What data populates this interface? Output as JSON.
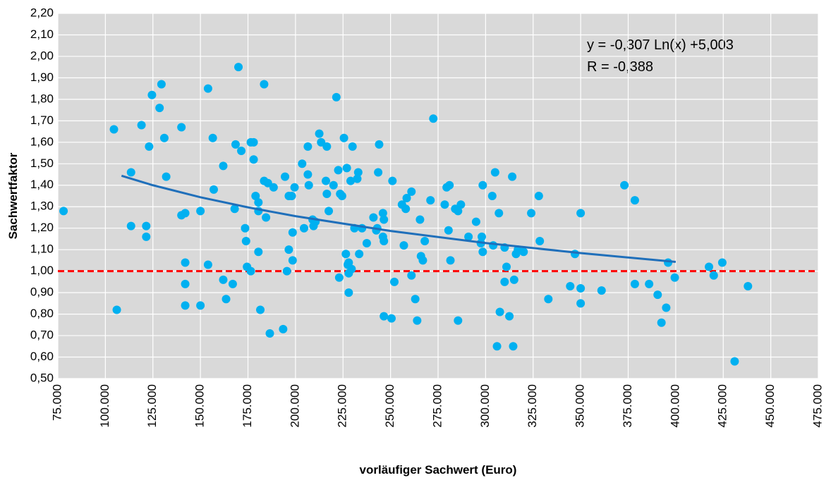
{
  "chart_data": {
    "type": "scatter",
    "x_label": "vorläufiger Sachwert (Euro)",
    "y_label": "Sachwertfaktor",
    "annotations": [
      "y = -0,307 Ln(x) +5,003",
      "R = -0,388"
    ],
    "xlim": [
      75000,
      475000
    ],
    "ylim": [
      0.5,
      2.2
    ],
    "xticks": [
      {
        "value": 75000,
        "label": "75.000"
      },
      {
        "value": 100000,
        "label": "100.000"
      },
      {
        "value": 125000,
        "label": "125.000"
      },
      {
        "value": 150000,
        "label": "150.000"
      },
      {
        "value": 175000,
        "label": "175.000"
      },
      {
        "value": 200000,
        "label": "200.000"
      },
      {
        "value": 225000,
        "label": "225.000"
      },
      {
        "value": 250000,
        "label": "250.000"
      },
      {
        "value": 275000,
        "label": "275.000"
      },
      {
        "value": 300000,
        "label": "300.000"
      },
      {
        "value": 325000,
        "label": "325.000"
      },
      {
        "value": 350000,
        "label": "350.000"
      },
      {
        "value": 375000,
        "label": "375.000"
      },
      {
        "value": 400000,
        "label": "400.000"
      },
      {
        "value": 425000,
        "label": "425.000"
      },
      {
        "value": 450000,
        "label": "450.000"
      },
      {
        "value": 475000,
        "label": "475.000"
      }
    ],
    "yticks": [
      {
        "value": 0.5,
        "label": "0,50"
      },
      {
        "value": 0.6,
        "label": "0,60"
      },
      {
        "value": 0.7,
        "label": "0,70"
      },
      {
        "value": 0.8,
        "label": "0,80"
      },
      {
        "value": 0.9,
        "label": "0,90"
      },
      {
        "value": 1.0,
        "label": "1,00"
      },
      {
        "value": 1.1,
        "label": "1,10"
      },
      {
        "value": 1.2,
        "label": "1,20"
      },
      {
        "value": 1.3,
        "label": "1,30"
      },
      {
        "value": 1.4,
        "label": "1,40"
      },
      {
        "value": 1.5,
        "label": "1,50"
      },
      {
        "value": 1.6,
        "label": "1,60"
      },
      {
        "value": 1.7,
        "label": "1,70"
      },
      {
        "value": 1.8,
        "label": "1,80"
      },
      {
        "value": 1.9,
        "label": "1,90"
      },
      {
        "value": 2.0,
        "label": "2,00"
      },
      {
        "value": 2.1,
        "label": "2,10"
      },
      {
        "value": 2.2,
        "label": "2,20"
      }
    ],
    "grid": true,
    "reference_line": {
      "value": 1.0,
      "color": "#ff0000"
    },
    "trendline": {
      "color": "#1f6fba",
      "x": [
        108500,
        125000,
        150000,
        175000,
        200000,
        250000,
        300000,
        350000,
        400000
      ],
      "values": [
        1.444,
        1.4,
        1.344,
        1.297,
        1.256,
        1.187,
        1.131,
        1.084,
        1.043
      ]
    },
    "series": [
      {
        "color": "#00b0f0",
        "x": [
          78000,
          104500,
          106000,
          113500,
          113500,
          119000,
          121500,
          121500,
          123000,
          124500,
          128500,
          129500,
          131000,
          132000,
          140000,
          140000,
          142000,
          142000,
          142000,
          142000,
          150000,
          150000,
          154000,
          154000,
          156500,
          157000,
          162000,
          162000,
          163500,
          167000,
          168000,
          168500,
          170000,
          171500,
          173500,
          174000,
          174500,
          176500,
          176500,
          178000,
          178000,
          179000,
          180500,
          180500,
          180500,
          181500,
          183500,
          183500,
          184500,
          185500,
          186500,
          188500,
          193500,
          194500,
          195500,
          196500,
          196500,
          198000,
          198500,
          198500,
          199500,
          203500,
          204500,
          206500,
          206500,
          207000,
          209000,
          209500,
          210500,
          212500,
          213500,
          216000,
          216500,
          216500,
          217500,
          220000,
          221500,
          222500,
          223000,
          223500,
          224500,
          225500,
          226500,
          227000,
          227500,
          228000,
          228000,
          228000,
          229000,
          229500,
          230000,
          231000,
          232500,
          233000,
          233500,
          235000,
          237500,
          241000,
          242500,
          243000,
          243500,
          244000,
          246000,
          246000,
          246500,
          246500,
          246500,
          251000,
          250500,
          252000,
          256000,
          257000,
          258000,
          258500,
          261000,
          261000,
          263000,
          264000,
          265500,
          266000,
          267000,
          268000,
          271000,
          272500,
          278500,
          279500,
          280500,
          281000,
          281500,
          284000,
          285500,
          285500,
          287000,
          291000,
          295000,
          297500,
          298000,
          298500,
          298500,
          303500,
          304000,
          305000,
          306000,
          307000,
          307500,
          310000,
          310000,
          311000,
          312500,
          314000,
          314500,
          315000,
          316000,
          317000,
          320000,
          324000,
          328000,
          328500,
          333000,
          344500,
          347000,
          350000,
          350000,
          350000,
          361000,
          373000,
          378500,
          378500,
          386000,
          390500,
          392500,
          395000,
          396000,
          399500,
          417500,
          420000,
          424500,
          431000,
          438000
        ],
        "values": [
          1.28,
          1.66,
          0.82,
          1.46,
          1.21,
          1.68,
          1.16,
          1.21,
          1.58,
          1.82,
          1.76,
          1.87,
          1.62,
          1.44,
          1.67,
          1.26,
          1.27,
          1.04,
          0.94,
          0.84,
          0.84,
          1.28,
          1.85,
          1.03,
          1.62,
          1.38,
          1.49,
          0.96,
          0.87,
          0.94,
          1.29,
          1.59,
          1.95,
          1.56,
          1.2,
          1.14,
          1.02,
          1.0,
          1.6,
          1.6,
          1.52,
          1.35,
          1.32,
          1.09,
          1.28,
          0.82,
          1.87,
          1.42,
          1.25,
          1.41,
          0.71,
          1.39,
          0.73,
          1.44,
          1.0,
          1.1,
          1.35,
          1.35,
          1.18,
          1.05,
          1.39,
          1.5,
          1.2,
          1.45,
          1.58,
          1.4,
          1.24,
          1.21,
          1.23,
          1.64,
          1.6,
          1.42,
          1.58,
          1.36,
          1.28,
          1.4,
          1.81,
          1.47,
          0.97,
          1.36,
          1.35,
          1.62,
          1.08,
          1.48,
          1.03,
          0.99,
          0.9,
          1.04,
          1.42,
          1.01,
          1.58,
          1.2,
          1.43,
          1.46,
          1.08,
          1.2,
          1.13,
          1.25,
          1.19,
          1.2,
          1.46,
          1.59,
          1.27,
          1.16,
          1.14,
          0.79,
          1.24,
          1.42,
          0.78,
          0.95,
          1.31,
          1.12,
          1.29,
          1.34,
          1.37,
          0.98,
          0.87,
          0.77,
          1.24,
          1.07,
          1.05,
          1.14,
          1.33,
          1.71,
          1.31,
          1.39,
          1.19,
          1.4,
          1.05,
          1.29,
          1.28,
          0.77,
          1.31,
          1.16,
          1.23,
          1.13,
          1.16,
          1.4,
          1.09,
          1.35,
          1.12,
          1.46,
          0.65,
          1.27,
          0.81,
          0.95,
          1.11,
          1.02,
          0.79,
          1.44,
          0.65,
          0.96,
          1.08,
          1.1,
          1.09,
          1.27,
          1.35,
          1.14,
          0.87,
          0.93,
          1.08,
          0.92,
          1.27,
          0.85,
          0.91,
          1.4,
          1.33,
          0.94,
          0.94,
          0.89,
          0.76,
          0.83,
          1.04,
          0.97,
          1.02,
          0.98,
          1.04,
          0.58,
          0.93
        ]
      }
    ]
  }
}
